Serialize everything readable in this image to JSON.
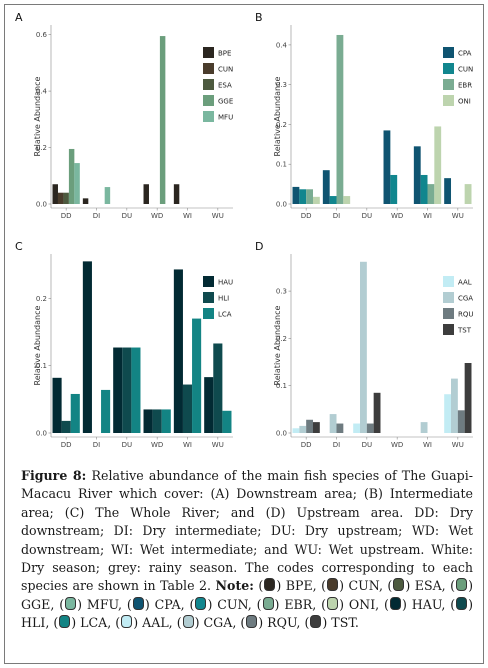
{
  "chart_data": [
    {
      "type": "bar",
      "panel": "A",
      "ylabel": "Relative Abundance",
      "categories": [
        "DD",
        "DI",
        "DU",
        "WD",
        "WI",
        "WU"
      ],
      "ylim": [
        0,
        0.62
      ],
      "yticks": [
        0.0,
        0.2,
        0.4,
        0.6
      ],
      "ytick_labels": [
        "0.0",
        "0.2",
        "0.4",
        "0.6"
      ],
      "legend_position": "top-right",
      "series": [
        {
          "name": "BPE",
          "color": "#2b2620",
          "values": [
            0.07,
            0.02,
            0,
            0.07,
            0.07,
            0
          ]
        },
        {
          "name": "CUN",
          "color": "#4a3c2c",
          "values": [
            0.04,
            0,
            0,
            0,
            0,
            0
          ]
        },
        {
          "name": "ESA",
          "color": "#4d5a3f",
          "values": [
            0.04,
            0,
            0,
            0,
            0,
            0
          ]
        },
        {
          "name": "GGE",
          "color": "#6b9e7c",
          "values": [
            0.195,
            0,
            0,
            0.595,
            0,
            0
          ]
        },
        {
          "name": "MFU",
          "color": "#7ab79f",
          "values": [
            0.145,
            0.06,
            0,
            0,
            0,
            0
          ]
        }
      ]
    },
    {
      "type": "bar",
      "panel": "B",
      "ylabel": "Relative Abundance",
      "categories": [
        "DD",
        "DI",
        "DU",
        "WD",
        "WI",
        "WU"
      ],
      "ylim": [
        0,
        0.44
      ],
      "yticks": [
        0.0,
        0.1,
        0.2,
        0.3,
        0.4
      ],
      "ytick_labels": [
        "0.0",
        "0.1",
        "0.2",
        "0.3",
        "0.4"
      ],
      "legend_position": "top-right",
      "series": [
        {
          "name": "CPA",
          "color": "#0f5471",
          "values": [
            0.043,
            0.085,
            0,
            0.185,
            0.145,
            0.065
          ]
        },
        {
          "name": "CUN",
          "color": "#11868e",
          "values": [
            0.037,
            0.02,
            0,
            0.073,
            0.073,
            0
          ]
        },
        {
          "name": "EBR",
          "color": "#7aac92",
          "values": [
            0.037,
            0.425,
            0,
            0,
            0.05,
            0
          ]
        },
        {
          "name": "ONI",
          "color": "#bdd4ae",
          "values": [
            0.018,
            0.02,
            0,
            0,
            0.195,
            0.05
          ]
        }
      ]
    },
    {
      "type": "bar",
      "panel": "C",
      "ylabel": "Relative Abundance",
      "categories": [
        "DD",
        "DI",
        "DU",
        "WD",
        "WI",
        "WU"
      ],
      "ylim": [
        0,
        0.26
      ],
      "yticks": [
        0.0,
        0.1,
        0.2
      ],
      "ytick_labels": [
        "0.0",
        "0.1",
        "0.2"
      ],
      "legend_position": "top-right",
      "series": [
        {
          "name": "HAU",
          "color": "#022a33",
          "values": [
            0.082,
            0.255,
            0.127,
            0.035,
            0.243,
            0.083
          ]
        },
        {
          "name": "HLI",
          "color": "#0f4a4e",
          "values": [
            0.018,
            0,
            0.127,
            0.035,
            0.072,
            0.133
          ]
        },
        {
          "name": "LCA",
          "color": "#138484",
          "values": [
            0.058,
            0.064,
            0.127,
            0.035,
            0.17,
            0.033
          ]
        }
      ]
    },
    {
      "type": "bar",
      "panel": "D",
      "ylabel": "Relative Abundance",
      "categories": [
        "DD",
        "DI",
        "DU",
        "WD",
        "WI",
        "WU"
      ],
      "ylim": [
        0,
        0.37
      ],
      "yticks": [
        0.0,
        0.1,
        0.2,
        0.3
      ],
      "ytick_labels": [
        "0.0",
        "0.1",
        "0.2",
        "0.3"
      ],
      "legend_position": "top-right",
      "series": [
        {
          "name": "AAL",
          "color": "#c2ecf4",
          "values": [
            0.01,
            0,
            0.02,
            0,
            0,
            0.082
          ]
        },
        {
          "name": "CGA",
          "color": "#b2cdd2",
          "values": [
            0.015,
            0.04,
            0.362,
            0,
            0.023,
            0.115
          ]
        },
        {
          "name": "RQU",
          "color": "#6e7b80",
          "values": [
            0.028,
            0.02,
            0.02,
            0,
            0,
            0.048
          ]
        },
        {
          "name": "TST",
          "color": "#3d3d3d",
          "values": [
            0.023,
            0,
            0.085,
            0,
            0,
            0.148
          ]
        }
      ]
    }
  ],
  "caption": {
    "label": "Figure 8:",
    "text": "Relative abundance of the main fish species of The Guapi-Macacu River which cover: (A) Downstream area; (B) Intermediate area; (C) The Whole River; and (D) Upstream area. DD: Dry downstream; DI: Dry intermediate; DU: Dry upstream; WD: Wet downstream; WI: Wet intermediate; and WU: Wet upstream. White: Dry season; grey: rainy season. The codes corresponding to each species are shown in Table 2.",
    "note_label": "Note:",
    "note_codes": [
      {
        "code": "BPE",
        "color": "#2b2620"
      },
      {
        "code": "CUN",
        "color": "#4a3c2c"
      },
      {
        "code": "ESA",
        "color": "#4d5a3f"
      },
      {
        "code": "GGE",
        "color": "#6b9e7c"
      },
      {
        "code": "MFU",
        "color": "#7ab79f"
      },
      {
        "code": "CPA",
        "color": "#0f5471"
      },
      {
        "code": "CUN",
        "color": "#11868e"
      },
      {
        "code": "EBR",
        "color": "#7aac92"
      },
      {
        "code": "ONI",
        "color": "#bdd4ae"
      },
      {
        "code": "HAU",
        "color": "#022a33"
      },
      {
        "code": "HLI",
        "color": "#0f4a4e"
      },
      {
        "code": "LCA",
        "color": "#138484"
      },
      {
        "code": "AAL",
        "color": "#c2ecf4"
      },
      {
        "code": "CGA",
        "color": "#b2cdd2"
      },
      {
        "code": "RQU",
        "color": "#6e7b80"
      },
      {
        "code": "TST",
        "color": "#3d3d3d"
      }
    ]
  }
}
